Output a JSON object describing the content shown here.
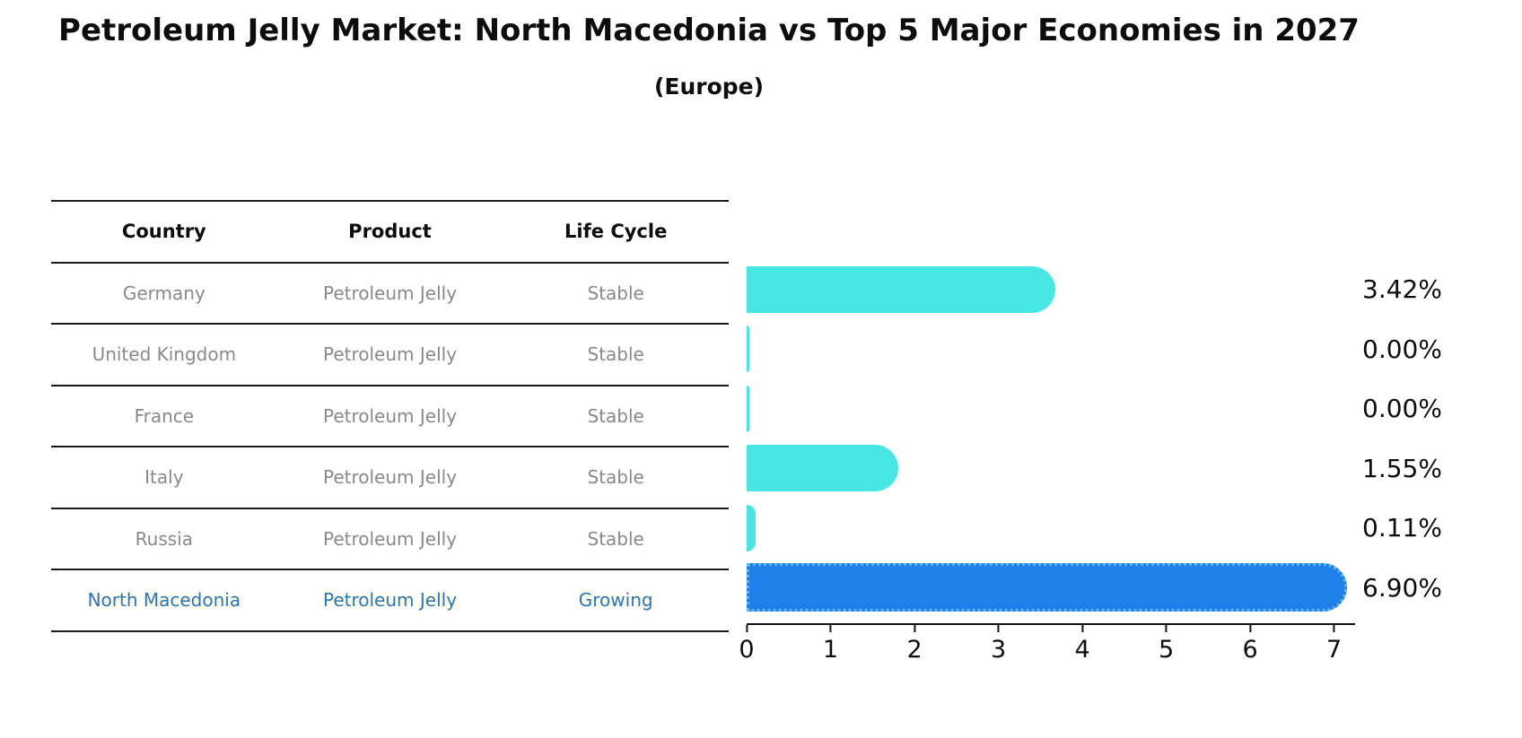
{
  "title": "Petroleum Jelly Market: North Macedonia vs Top 5 Major Economies in 2027",
  "subtitle": "(Europe)",
  "table": {
    "headers": [
      "Country",
      "Product",
      "Life Cycle"
    ],
    "rows": [
      {
        "country": "Germany",
        "product": "Petroleum Jelly",
        "life_cycle": "Stable",
        "highlight": false
      },
      {
        "country": "United Kingdom",
        "product": "Petroleum Jelly",
        "life_cycle": "Stable",
        "highlight": false
      },
      {
        "country": "France",
        "product": "Petroleum Jelly",
        "life_cycle": "Stable",
        "highlight": false
      },
      {
        "country": "Italy",
        "product": "Petroleum Jelly",
        "life_cycle": "Stable",
        "highlight": false
      },
      {
        "country": "Russia",
        "product": "Petroleum Jelly",
        "life_cycle": "Stable",
        "highlight": false
      },
      {
        "country": "North Macedonia",
        "product": "Petroleum Jelly",
        "life_cycle": "Growing",
        "highlight": true
      }
    ]
  },
  "chart_data": {
    "type": "bar",
    "orientation": "horizontal",
    "title": "Petroleum Jelly Market: North Macedonia vs Top 5 Major Economies in 2027",
    "subtitle": "(Europe)",
    "categories": [
      "Germany",
      "United Kingdom",
      "France",
      "Italy",
      "Russia",
      "North Macedonia"
    ],
    "values": [
      3.42,
      0.0,
      0.0,
      1.55,
      0.11,
      6.9
    ],
    "value_labels": [
      "3.42%",
      "0.00%",
      "0.00%",
      "1.55%",
      "0.11%",
      "6.90%"
    ],
    "x_ticks": [
      0,
      1,
      2,
      3,
      4,
      5,
      6,
      7
    ],
    "xlim": [
      0,
      7.25
    ],
    "highlight_index": 5,
    "grid": false,
    "legend": "none"
  },
  "colors": {
    "bar_default": "#48E7E3",
    "bar_highlight": "#1E80E8",
    "bar_highlight_border": "#5FB2F5",
    "highlight_text": "#2878BE",
    "text_muted": "#898989",
    "text_dark": "#0D0D0D"
  }
}
